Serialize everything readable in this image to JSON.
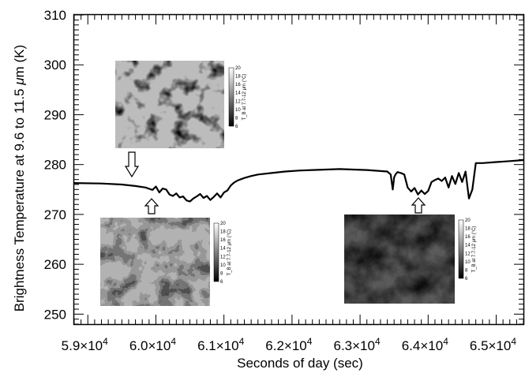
{
  "chart_data": {
    "type": "line",
    "xlabel": "Seconds of day (sec)",
    "ylabel_prefix": "Brightness Temperature at 9.6 to 11.5 ",
    "ylabel_mu": "μ",
    "ylabel_suffix": "m (K)",
    "xlim": [
      58800,
      65400
    ],
    "ylim": [
      248,
      310
    ],
    "x_ticks": [
      59000,
      60000,
      61000,
      62000,
      63000,
      64000,
      65000
    ],
    "x_tick_labels": [
      "5.9×10",
      "6.0×10",
      "6.1×10",
      "6.2×10",
      "6.3×10",
      "6.4×10",
      "6.5×10"
    ],
    "x_tick_exponent": "4",
    "y_ticks": [
      250,
      260,
      270,
      280,
      290,
      300,
      310
    ],
    "y_tick_labels": [
      "250",
      "260",
      "270",
      "280",
      "290",
      "300",
      "310"
    ],
    "series": [
      {
        "x": [
          58800,
          59200,
          59500,
          59700,
          59850,
          59950,
          60000,
          60050,
          60100,
          60150,
          60200,
          60250,
          60300,
          60350,
          60400,
          60450,
          60500,
          60550,
          60600,
          60650,
          60700,
          60750,
          60800,
          60850,
          60900,
          60950,
          61000,
          61050,
          61100,
          61150,
          61200,
          61300,
          61400,
          61500,
          61700,
          61900,
          62100,
          62300,
          62500,
          62700,
          62900,
          63100,
          63300,
          63400,
          63450,
          63480,
          63500,
          63520,
          63550,
          63600,
          63650,
          63700,
          63750,
          63800,
          63850,
          63900,
          63950,
          64000,
          64050,
          64100,
          64150,
          64200,
          64250,
          64300,
          64350,
          64400,
          64450,
          64500,
          64550,
          64600,
          64650,
          64700,
          64800,
          65000,
          65200,
          65400
        ],
        "y": [
          276.3,
          276.2,
          276.0,
          275.7,
          275.4,
          274.9,
          275.6,
          274.4,
          275.2,
          275.0,
          274.0,
          273.7,
          274.2,
          273.4,
          273.6,
          272.8,
          272.6,
          273.2,
          273.6,
          274.1,
          273.3,
          273.7,
          272.9,
          273.5,
          274.2,
          273.4,
          274.4,
          274.8,
          275.8,
          276.4,
          276.8,
          277.3,
          277.7,
          278.0,
          278.3,
          278.6,
          278.8,
          278.9,
          279.0,
          279.1,
          279.0,
          278.9,
          278.7,
          278.6,
          278.0,
          275.0,
          277.4,
          278.0,
          278.5,
          278.3,
          278.0,
          275.4,
          274.6,
          275.3,
          274.0,
          274.8,
          274.1,
          274.7,
          276.5,
          276.9,
          277.2,
          276.7,
          277.4,
          275.4,
          277.7,
          276.1,
          278.3,
          276.5,
          278.6,
          273.2,
          275.0,
          280.3,
          280.3,
          280.5,
          280.7,
          280.9
        ]
      }
    ],
    "insets": [
      {
        "colorbar_ticks": [
          "20",
          "18",
          "16",
          "14",
          "12",
          "10",
          "8",
          "6"
        ],
        "colorbar_label": "T_B at 7.7-12 μm (°C)"
      },
      {
        "colorbar_ticks": [
          "20",
          "18",
          "16",
          "14",
          "12",
          "10",
          "8",
          "6"
        ],
        "colorbar_label": "T_B at 7.7-12 μm (°C)"
      },
      {
        "colorbar_ticks": [
          "20",
          "18",
          "16",
          "14",
          "12",
          "10",
          "8",
          "6"
        ],
        "colorbar_label": "T_B at 7.7-12 μm (°C)"
      }
    ],
    "grid": false,
    "legend": "none"
  }
}
